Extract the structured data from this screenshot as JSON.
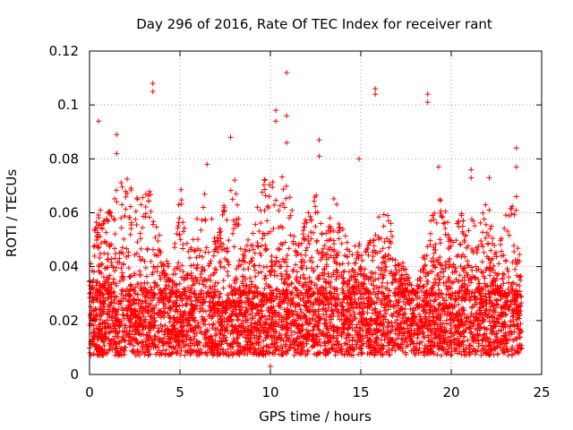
{
  "chart_data": {
    "type": "scatter",
    "title": "Day 296 of 2016, Rate Of TEC Index for receiver rant",
    "xlabel": "GPS time / hours",
    "ylabel": "ROTI / TECUs",
    "xlim": [
      0,
      25
    ],
    "ylim": [
      0,
      0.12
    ],
    "xticks": [
      "0",
      "5",
      "10",
      "15",
      "20",
      "25"
    ],
    "yticks": [
      "0",
      "0.02",
      "0.04",
      "0.06",
      "0.08",
      "0.1",
      "0.12"
    ],
    "grid": true,
    "marker": "plus",
    "color": "#ff0000",
    "x_coverage": [
      0,
      23.9
    ],
    "series": [
      {
        "name": "ROTI",
        "dense_band": {
          "low": 0.007,
          "high": 0.03
        },
        "notable_points": [
          {
            "x": 0.5,
            "y": 0.094
          },
          {
            "x": 1.5,
            "y": 0.089
          },
          {
            "x": 1.5,
            "y": 0.082
          },
          {
            "x": 3.5,
            "y": 0.108
          },
          {
            "x": 3.5,
            "y": 0.105
          },
          {
            "x": 6.5,
            "y": 0.078
          },
          {
            "x": 7.8,
            "y": 0.088
          },
          {
            "x": 10.3,
            "y": 0.098
          },
          {
            "x": 10.3,
            "y": 0.094
          },
          {
            "x": 10.9,
            "y": 0.112
          },
          {
            "x": 10.9,
            "y": 0.096
          },
          {
            "x": 10.9,
            "y": 0.086
          },
          {
            "x": 12.7,
            "y": 0.087
          },
          {
            "x": 12.7,
            "y": 0.081
          },
          {
            "x": 14.9,
            "y": 0.08
          },
          {
            "x": 15.8,
            "y": 0.106
          },
          {
            "x": 15.8,
            "y": 0.104
          },
          {
            "x": 18.7,
            "y": 0.104
          },
          {
            "x": 18.7,
            "y": 0.101
          },
          {
            "x": 19.3,
            "y": 0.077
          },
          {
            "x": 21.1,
            "y": 0.076
          },
          {
            "x": 21.1,
            "y": 0.073
          },
          {
            "x": 22.1,
            "y": 0.073
          },
          {
            "x": 23.6,
            "y": 0.084
          },
          {
            "x": 23.6,
            "y": 0.077
          },
          {
            "x": 23.6,
            "y": 0.066
          },
          {
            "x": 10,
            "y": 0.003
          }
        ],
        "envelope": [
          {
            "x": 0.0,
            "y": 0.04
          },
          {
            "x": 0.5,
            "y": 0.065
          },
          {
            "x": 1.0,
            "y": 0.06
          },
          {
            "x": 1.5,
            "y": 0.07
          },
          {
            "x": 2.0,
            "y": 0.075
          },
          {
            "x": 2.5,
            "y": 0.065
          },
          {
            "x": 3.0,
            "y": 0.068
          },
          {
            "x": 3.5,
            "y": 0.07
          },
          {
            "x": 4.0,
            "y": 0.045
          },
          {
            "x": 4.5,
            "y": 0.04
          },
          {
            "x": 5.0,
            "y": 0.072
          },
          {
            "x": 5.5,
            "y": 0.045
          },
          {
            "x": 6.0,
            "y": 0.06
          },
          {
            "x": 6.5,
            "y": 0.07
          },
          {
            "x": 7.0,
            "y": 0.05
          },
          {
            "x": 7.5,
            "y": 0.065
          },
          {
            "x": 8.0,
            "y": 0.075
          },
          {
            "x": 8.5,
            "y": 0.045
          },
          {
            "x": 9.0,
            "y": 0.055
          },
          {
            "x": 9.5,
            "y": 0.068
          },
          {
            "x": 10.0,
            "y": 0.08
          },
          {
            "x": 10.5,
            "y": 0.075
          },
          {
            "x": 11.0,
            "y": 0.07
          },
          {
            "x": 11.5,
            "y": 0.05
          },
          {
            "x": 12.0,
            "y": 0.06
          },
          {
            "x": 12.5,
            "y": 0.072
          },
          {
            "x": 13.0,
            "y": 0.05
          },
          {
            "x": 13.5,
            "y": 0.068
          },
          {
            "x": 14.0,
            "y": 0.06
          },
          {
            "x": 14.5,
            "y": 0.045
          },
          {
            "x": 15.0,
            "y": 0.055
          },
          {
            "x": 15.5,
            "y": 0.05
          },
          {
            "x": 16.0,
            "y": 0.06
          },
          {
            "x": 16.5,
            "y": 0.062
          },
          {
            "x": 17.0,
            "y": 0.045
          },
          {
            "x": 17.5,
            "y": 0.04
          },
          {
            "x": 18.0,
            "y": 0.03
          },
          {
            "x": 18.5,
            "y": 0.05
          },
          {
            "x": 19.0,
            "y": 0.06
          },
          {
            "x": 19.5,
            "y": 0.07
          },
          {
            "x": 20.0,
            "y": 0.05
          },
          {
            "x": 20.5,
            "y": 0.06
          },
          {
            "x": 21.0,
            "y": 0.06
          },
          {
            "x": 21.5,
            "y": 0.055
          },
          {
            "x": 22.0,
            "y": 0.065
          },
          {
            "x": 22.5,
            "y": 0.045
          },
          {
            "x": 23.0,
            "y": 0.06
          },
          {
            "x": 23.5,
            "y": 0.07
          },
          {
            "x": 23.9,
            "y": 0.05
          }
        ]
      }
    ]
  }
}
